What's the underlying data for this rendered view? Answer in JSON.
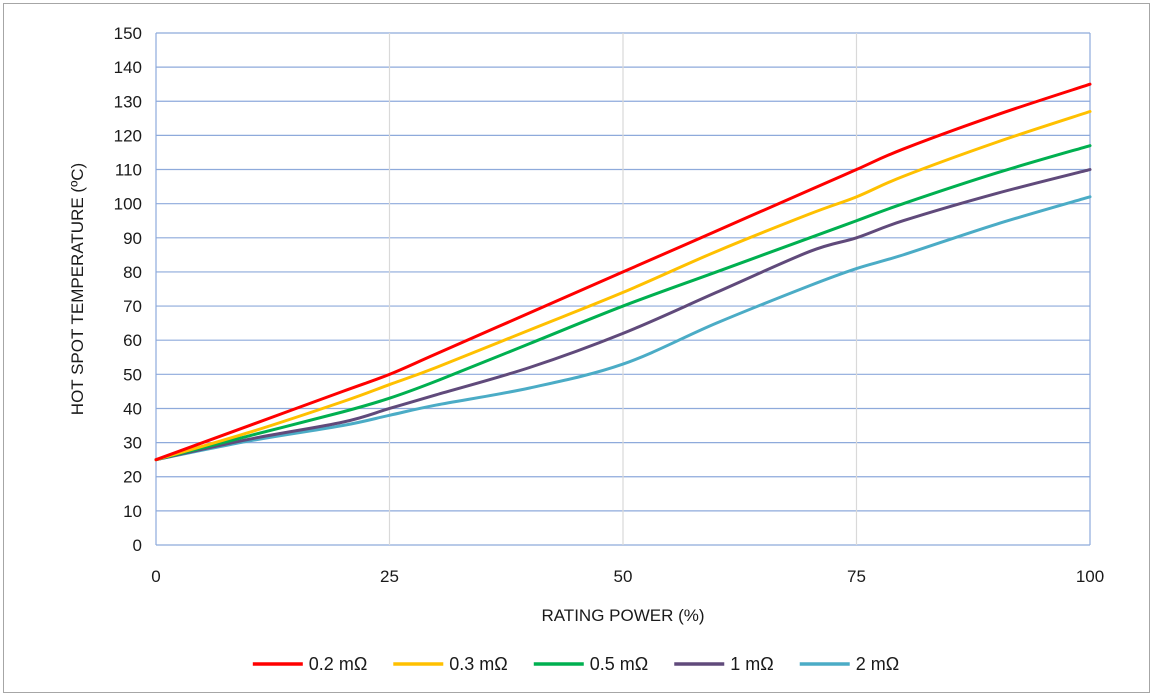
{
  "chart_data": {
    "type": "line",
    "xlabel": "RATING POWER (%)",
    "ylabel": "HOT SPOT TEMPERATURE (ºC)",
    "xlim": [
      0,
      100
    ],
    "ylim": [
      0,
      150
    ],
    "x_ticks": [
      0,
      25,
      50,
      75,
      100
    ],
    "y_ticks": [
      0,
      10,
      20,
      30,
      40,
      50,
      60,
      70,
      80,
      90,
      100,
      110,
      120,
      130,
      140,
      150
    ],
    "grid": true,
    "legend_position": "bottom",
    "series": [
      {
        "name": "0.2 mΩ",
        "color": "#ff0000",
        "points": [
          [
            0,
            25
          ],
          [
            10,
            35
          ],
          [
            20,
            45
          ],
          [
            25,
            50
          ],
          [
            30,
            56
          ],
          [
            40,
            68
          ],
          [
            50,
            80
          ],
          [
            60,
            92
          ],
          [
            70,
            104
          ],
          [
            75,
            110
          ],
          [
            80,
            116
          ],
          [
            90,
            126
          ],
          [
            100,
            135
          ]
        ]
      },
      {
        "name": "0.3 mΩ",
        "color": "#ffc000",
        "points": [
          [
            0,
            25
          ],
          [
            10,
            33
          ],
          [
            20,
            42
          ],
          [
            25,
            47
          ],
          [
            30,
            52
          ],
          [
            40,
            63
          ],
          [
            50,
            74
          ],
          [
            60,
            86
          ],
          [
            70,
            97
          ],
          [
            75,
            102
          ],
          [
            80,
            108
          ],
          [
            90,
            118
          ],
          [
            100,
            127
          ]
        ]
      },
      {
        "name": "0.5 mΩ",
        "color": "#00b050",
        "points": [
          [
            0,
            25
          ],
          [
            10,
            32
          ],
          [
            20,
            39
          ],
          [
            25,
            43
          ],
          [
            30,
            48
          ],
          [
            40,
            59
          ],
          [
            50,
            70
          ],
          [
            60,
            80
          ],
          [
            70,
            90
          ],
          [
            75,
            95
          ],
          [
            80,
            100
          ],
          [
            90,
            109
          ],
          [
            100,
            117
          ]
        ]
      },
      {
        "name": "1 mΩ",
        "color": "#604a7b",
        "points": [
          [
            0,
            25
          ],
          [
            10,
            31
          ],
          [
            20,
            36
          ],
          [
            25,
            40
          ],
          [
            30,
            44
          ],
          [
            40,
            52
          ],
          [
            50,
            62
          ],
          [
            60,
            74
          ],
          [
            70,
            86
          ],
          [
            75,
            90
          ],
          [
            80,
            95
          ],
          [
            90,
            103
          ],
          [
            100,
            110
          ]
        ]
      },
      {
        "name": "2 mΩ",
        "color": "#4bacc6",
        "points": [
          [
            0,
            25
          ],
          [
            10,
            30.5
          ],
          [
            20,
            35
          ],
          [
            25,
            38
          ],
          [
            30,
            41
          ],
          [
            40,
            46
          ],
          [
            50,
            53
          ],
          [
            60,
            65
          ],
          [
            70,
            76
          ],
          [
            75,
            81
          ],
          [
            80,
            85
          ],
          [
            90,
            94
          ],
          [
            100,
            102
          ]
        ]
      }
    ]
  }
}
